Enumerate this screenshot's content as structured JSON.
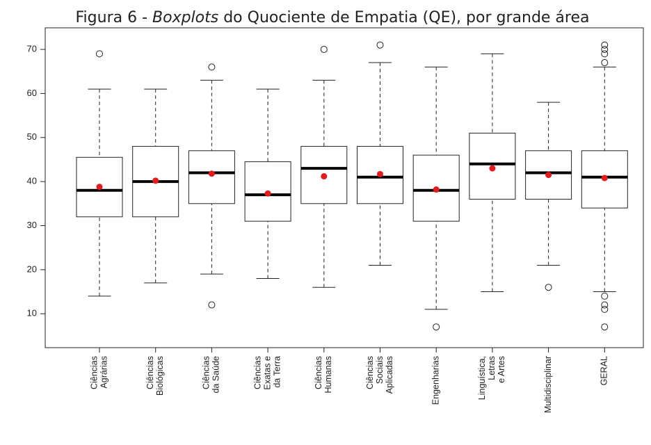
{
  "chart_data": {
    "type": "boxplot",
    "title_parts": [
      "Figura 6 - ",
      "Boxplots",
      " do Quociente de Empatia (QE), por grande área"
    ],
    "categories": [
      [
        "Ciências",
        "Agrárias"
      ],
      [
        "Ciências",
        "Biológicas"
      ],
      [
        "Ciências",
        "da Saúde"
      ],
      [
        "Ciências",
        "Exatas e",
        "da Terra"
      ],
      [
        "Ciências",
        "Humanas"
      ],
      [
        "Ciências",
        "Sociais",
        "Aplicadas"
      ],
      [
        "Engenharias"
      ],
      [
        "Linguística,",
        "Letras",
        "e Artes"
      ],
      [
        "Multidisciplinar"
      ],
      [
        "GERAL"
      ]
    ],
    "whisker_low": [
      14,
      17,
      19,
      18,
      16,
      21,
      11,
      15,
      21,
      15
    ],
    "q1": [
      32,
      32,
      35,
      31,
      35,
      35,
      31,
      36,
      36,
      34
    ],
    "median": [
      38,
      40,
      42,
      37,
      43,
      41,
      38,
      44,
      42,
      41
    ],
    "q3": [
      45.5,
      48,
      47,
      44.5,
      48,
      48,
      46,
      51,
      47,
      47
    ],
    "whisker_high": [
      61,
      61,
      63,
      61,
      63,
      67,
      66,
      69,
      58,
      66
    ],
    "means": [
      38.8,
      40.2,
      41.8,
      37.3,
      41.2,
      41.7,
      38.2,
      43,
      41.5,
      40.8
    ],
    "outliers": [
      [
        69
      ],
      [],
      [
        12,
        66
      ],
      [],
      [
        70
      ],
      [
        71
      ],
      [
        7
      ],
      [],
      [
        16
      ],
      [
        7,
        11,
        12,
        14,
        67,
        69,
        70,
        71
      ]
    ],
    "mean_color": "#e41a1c",
    "ylim": [
      2.3,
      74.9
    ],
    "yticks": [
      10,
      20,
      30,
      40,
      50,
      60,
      70
    ]
  }
}
